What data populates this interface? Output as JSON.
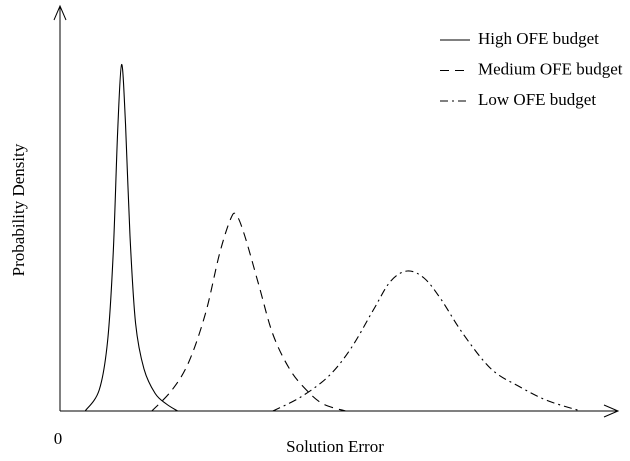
{
  "chart_data": {
    "type": "line",
    "x_label": "Solution Error",
    "y_label": "Probability Density",
    "xlim": [
      0,
      100
    ],
    "ylim": [
      0,
      1.15
    ],
    "xticks": [
      0
    ],
    "legend": "top-right",
    "series": [
      {
        "name": "High OFE budget",
        "color": "#000000",
        "dash": "solid",
        "x": [
          4.5,
          7,
          8.5,
          9.5,
          10.3,
          11,
          11.7,
          12.5,
          13.5,
          15,
          17,
          19,
          21
        ],
        "values": [
          0,
          0.06,
          0.2,
          0.45,
          0.8,
          0.99,
          0.82,
          0.5,
          0.25,
          0.12,
          0.05,
          0.02,
          0
        ]
      },
      {
        "name": "Medium OFE budget",
        "color": "#000000",
        "dash": "dashed",
        "x": [
          16.4,
          20,
          23,
          26,
          28.5,
          30.5,
          31.5,
          33,
          35.5,
          38,
          41,
          44,
          47,
          51
        ],
        "values": [
          0,
          0.06,
          0.14,
          0.28,
          0.45,
          0.55,
          0.56,
          0.5,
          0.36,
          0.22,
          0.12,
          0.06,
          0.02,
          0
        ]
      },
      {
        "name": "Low OFE budget",
        "color": "#000000",
        "dash": "dashdot",
        "x": [
          38,
          43,
          48,
          52,
          56,
          59,
          62,
          65,
          68,
          72,
          77,
          82,
          87,
          93
        ],
        "values": [
          0,
          0.04,
          0.1,
          0.18,
          0.29,
          0.37,
          0.4,
          0.38,
          0.32,
          0.22,
          0.12,
          0.07,
          0.03,
          0
        ]
      }
    ]
  }
}
